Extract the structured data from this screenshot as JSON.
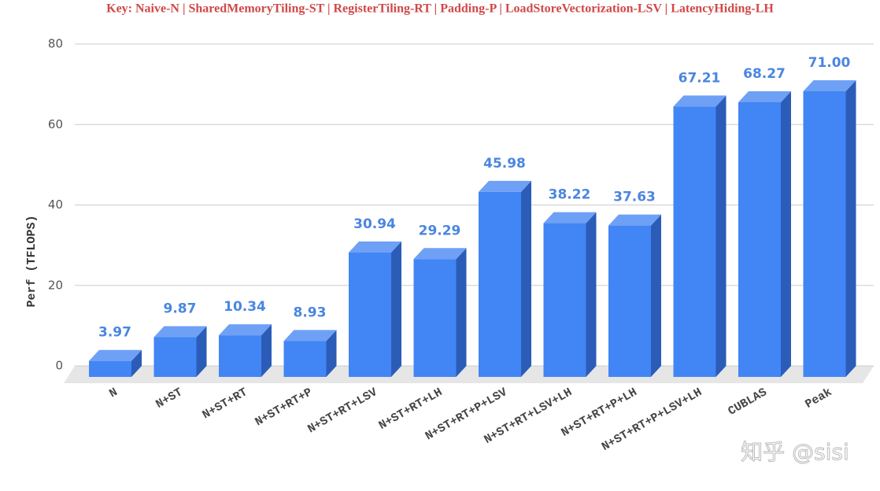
{
  "chart_data": {
    "type": "bar3d",
    "title": "Key: Naive-N | SharedMemoryTiling-ST | RegisterTiling-RT | Padding-P | LoadStoreVectorization-LSV | LatencyHiding-LH",
    "y_label": "Perf (TFLOPS)",
    "categories": [
      "N",
      "N+ST",
      "N+ST+RT",
      "N+ST+RT+P",
      "N+ST+RT+LSV",
      "N+ST+RT+LH",
      "N+ST+RT+P+LSV",
      "N+ST+RT+LSV+LH",
      "N+ST+RT+P+LH",
      "N+ST+RT+P+LSV+LH",
      "CUBLAS",
      "Peak"
    ],
    "values": [
      3.97,
      9.87,
      10.34,
      8.93,
      30.94,
      29.29,
      45.98,
      38.22,
      37.63,
      67.21,
      68.27,
      71
    ],
    "value_labels": [
      "3.97",
      "9.87",
      "10.34",
      "8.93",
      "30.94",
      "29.29",
      "45.98",
      "38.22",
      "37.63",
      "67.21",
      "68.27",
      "71.00"
    ],
    "color": "#4285f4",
    "ylim": [
      0,
      80
    ],
    "yticks": [
      0,
      20,
      40,
      60,
      80
    ],
    "grid": true,
    "watermark": "知乎 @sisi"
  }
}
